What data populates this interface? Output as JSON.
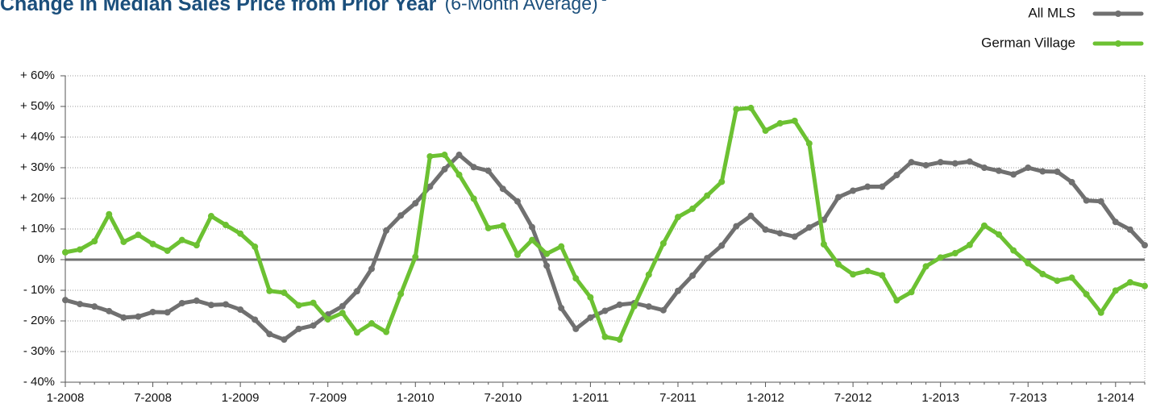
{
  "chart_data": {
    "type": "line",
    "title": "Change in Median Sales Price from Prior Year",
    "subtitle": "(6-Month Average)",
    "footnote_mark": "1",
    "categories": [
      "1-2008",
      null,
      null,
      null,
      null,
      null,
      "7-2008",
      null,
      null,
      null,
      null,
      null,
      "1-2009",
      null,
      null,
      null,
      null,
      null,
      "7-2009",
      null,
      null,
      null,
      null,
      null,
      "1-2010",
      null,
      null,
      null,
      null,
      null,
      "7-2010",
      null,
      null,
      null,
      null,
      null,
      "1-2011",
      null,
      null,
      null,
      null,
      null,
      "7-2011",
      null,
      null,
      null,
      null,
      null,
      "1-2012",
      null,
      null,
      null,
      null,
      null,
      "7-2012",
      null,
      null,
      null,
      null,
      null,
      "1-2013",
      null,
      null,
      null,
      null,
      null,
      "7-2013",
      null,
      null,
      null,
      null,
      null,
      "1-2014",
      null,
      null
    ],
    "series": [
      {
        "name": "All MLS",
        "color": "#707070",
        "values": [
          -13.2,
          -14.5,
          -15.3,
          -16.8,
          -18.9,
          -18.6,
          -17.1,
          -17.2,
          -14.2,
          -13.4,
          -14.8,
          -14.6,
          -16.3,
          -19.6,
          -24.3,
          -26.1,
          -22.6,
          -21.5,
          -17.9,
          -15.2,
          -10.3,
          -3.0,
          9.5,
          14.4,
          18.4,
          23.8,
          29.5,
          34.2,
          30.2,
          29.0,
          23.1,
          19.0,
          10.6,
          -2.0,
          -15.8,
          -22.6,
          -18.9,
          -16.7,
          -14.7,
          -14.2,
          -15.3,
          -16.5,
          -10.2,
          -5.2,
          0.5,
          4.6,
          10.9,
          14.3,
          9.8,
          8.6,
          7.5,
          10.5,
          13.0,
          20.4,
          22.5,
          23.8,
          23.8,
          27.6,
          31.8,
          30.8,
          31.8,
          31.4,
          32.0,
          30.0,
          29.0,
          27.8,
          30.0,
          28.8,
          28.7,
          25.3,
          19.3,
          19.0,
          12.3,
          9.8,
          4.7
        ]
      },
      {
        "name": "German Village",
        "color": "#6cc132",
        "values": [
          2.4,
          3.3,
          6.0,
          14.8,
          5.8,
          8.1,
          5.1,
          2.9,
          6.4,
          4.7,
          14.2,
          11.3,
          8.5,
          4.2,
          -10.2,
          -10.8,
          -14.9,
          -14.1,
          -19.5,
          -17.4,
          -23.8,
          -20.8,
          -23.6,
          -11.2,
          0.9,
          33.7,
          34.2,
          27.7,
          19.9,
          10.3,
          11.1,
          1.6,
          6.4,
          1.9,
          4.3,
          -6.1,
          -12.3,
          -25.2,
          -26.1,
          -15.2,
          -4.9,
          5.3,
          13.9,
          16.6,
          20.9,
          25.4,
          49.1,
          49.5,
          42.1,
          44.5,
          45.3,
          37.9,
          5.0,
          -1.5,
          -4.8,
          -3.7,
          -5.1,
          -13.3,
          -10.6,
          -2.2,
          0.7,
          2.1,
          4.8,
          11.1,
          8.2,
          3.0,
          -1.2,
          -4.7,
          -6.9,
          -5.9,
          -11.3,
          -17.3,
          -10.1,
          -7.4,
          -8.6
        ]
      }
    ],
    "ylim": [
      -40,
      60
    ],
    "yticks": [
      {
        "value": -40,
        "label": "- 40%"
      },
      {
        "value": -30,
        "label": "- 30%"
      },
      {
        "value": -20,
        "label": "- 20%"
      },
      {
        "value": -10,
        "label": "- 10%"
      },
      {
        "value": 0,
        "label": "0%"
      },
      {
        "value": 10,
        "label": "+ 10%"
      },
      {
        "value": 20,
        "label": "+ 20%"
      },
      {
        "value": 30,
        "label": "+ 30%"
      },
      {
        "value": 40,
        "label": "+ 40%"
      },
      {
        "value": 50,
        "label": "+ 50%"
      },
      {
        "value": 60,
        "label": "+ 60%"
      }
    ],
    "grid": true,
    "legend": "top-right"
  }
}
